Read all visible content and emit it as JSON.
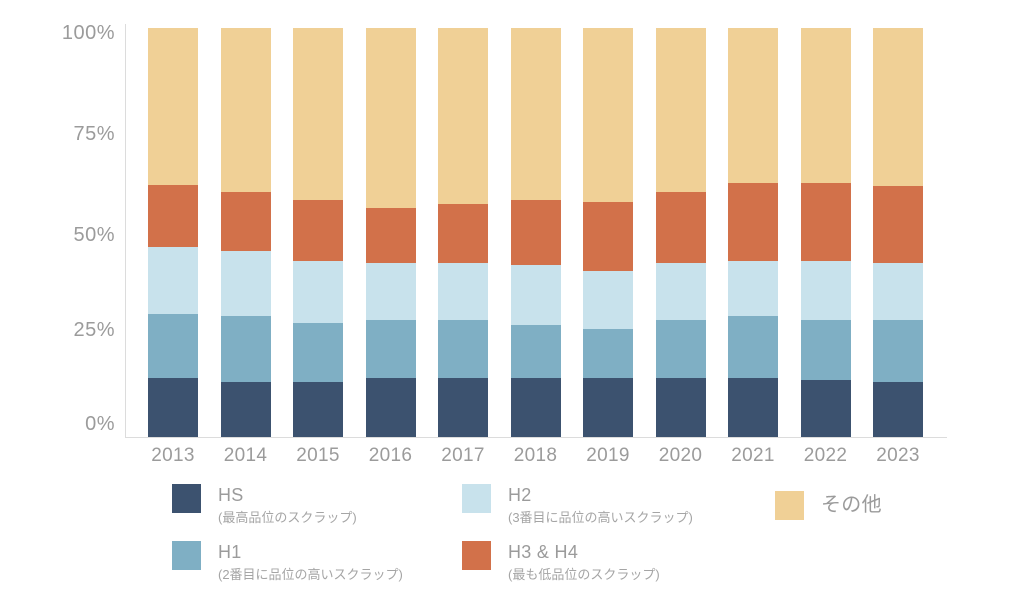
{
  "chart_data": {
    "type": "bar",
    "stacked": true,
    "orientation": "vertical",
    "title": "",
    "xlabel": "",
    "ylabel": "",
    "ylim": [
      0,
      100
    ],
    "yticks": [
      {
        "label": "0%",
        "value": 0
      },
      {
        "label": "25%",
        "value": 25
      },
      {
        "label": "50%",
        "value": 50
      },
      {
        "label": "75%",
        "value": 75
      },
      {
        "label": "100%",
        "value": 100
      }
    ],
    "grid": false,
    "legend_position": "bottom",
    "categories": [
      "2013",
      "2014",
      "2015",
      "2016",
      "2017",
      "2018",
      "2019",
      "2020",
      "2021",
      "2022",
      "2023"
    ],
    "series": [
      {
        "name": "HS",
        "sublabel": "(最高品位のスクラップ)",
        "color": "#3c526f",
        "values": [
          14.5,
          13.5,
          13.5,
          14.5,
          14.5,
          14.5,
          14.5,
          14.5,
          14.5,
          14.0,
          13.5
        ]
      },
      {
        "name": "H1",
        "sublabel": "(2番目に品位の高いスクラップ)",
        "color": "#7fafc4",
        "values": [
          15.5,
          16.0,
          14.5,
          14.0,
          14.0,
          13.0,
          12.0,
          14.0,
          15.0,
          14.5,
          15.0
        ]
      },
      {
        "name": "H2",
        "sublabel": "(3番目に品位の高いスクラップ)",
        "color": "#c8e2ec",
        "values": [
          16.5,
          16.0,
          15.0,
          14.0,
          14.0,
          14.5,
          14.0,
          14.0,
          13.5,
          14.5,
          14.0
        ]
      },
      {
        "name": "H3 & H4",
        "sublabel": "(最も低品位のスクラップ)",
        "color": "#d2714a",
        "values": [
          15.0,
          14.5,
          15.0,
          13.5,
          14.5,
          16.0,
          17.0,
          17.5,
          19.0,
          19.0,
          19.0
        ]
      },
      {
        "name": "その他",
        "sublabel": "",
        "color": "#f0d096",
        "values": [
          38.5,
          40.0,
          42.0,
          44.0,
          43.0,
          42.0,
          42.5,
          40.0,
          38.0,
          38.0,
          38.5
        ]
      }
    ],
    "legend_order": [
      "HS",
      "H2",
      "その他",
      "H1",
      "H3 & H4"
    ]
  },
  "colors": {
    "background": "#ffffff",
    "axis_line": "#dcdcdc",
    "tick_text": "#9b9b9b",
    "legend_text": "#9b9b9b",
    "legend_subtext": "#a5a5a5"
  }
}
